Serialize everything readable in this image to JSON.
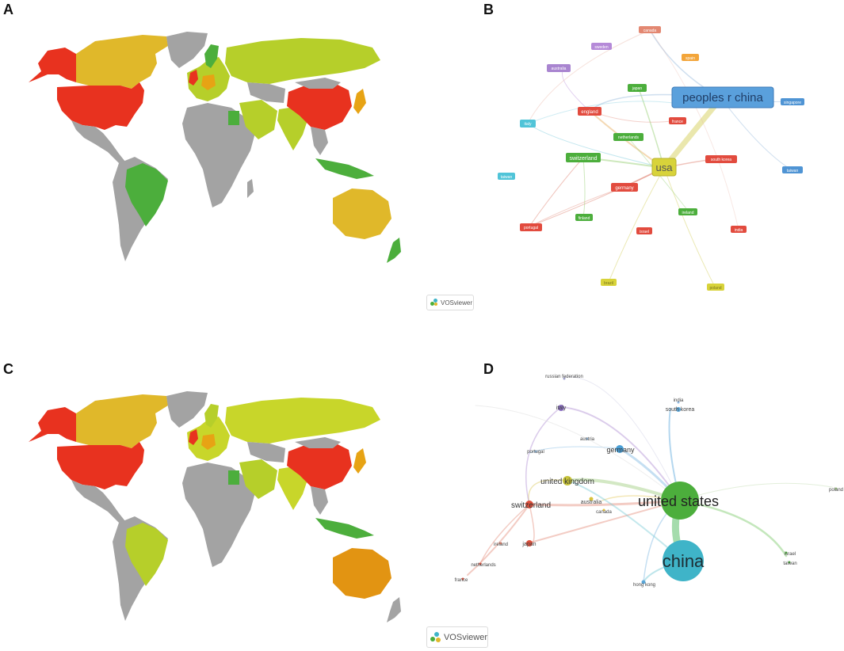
{
  "panels": {
    "a": "A",
    "b": "B",
    "c": "C",
    "d": "D"
  },
  "vosviewer": {
    "badge_text": "VOSviewer"
  },
  "colors": {
    "red": "#e8321f",
    "orange": "#e7a314",
    "yellow": "#e0b82a",
    "lime": "#b6cf2a",
    "green": "#4cae3c",
    "gray": "#a3a3a3",
    "blue": "#4f94d4",
    "teal": "#3fb4c8",
    "purple": "#9a6fc0"
  },
  "network_b": {
    "nodes": [
      {
        "id": "peoples_r_china",
        "label": "peoples r china",
        "color": "#4f94d4"
      },
      {
        "id": "usa",
        "label": "usa",
        "color": "#d8d33a"
      },
      {
        "id": "canada",
        "label": "canada",
        "color": "#e38872"
      },
      {
        "id": "sweden",
        "label": "sweden",
        "color": "#b58ad8"
      },
      {
        "id": "spain",
        "label": "spain",
        "color": "#f3a53a"
      },
      {
        "id": "australia",
        "label": "australia",
        "color": "#a985d0"
      },
      {
        "id": "japan",
        "label": "japan",
        "color": "#4cae3c"
      },
      {
        "id": "singapore",
        "label": "singapore",
        "color": "#4f94d4"
      },
      {
        "id": "italy",
        "label": "italy",
        "color": "#50c4d8"
      },
      {
        "id": "england",
        "label": "england",
        "color": "#e24b3e"
      },
      {
        "id": "france",
        "label": "france",
        "color": "#e24b3e"
      },
      {
        "id": "netherlands",
        "label": "netherlands",
        "color": "#4cae3c"
      },
      {
        "id": "switzerland",
        "label": "switzerland",
        "color": "#4cae3c"
      },
      {
        "id": "south_korea",
        "label": "south korea",
        "color": "#e24b3e"
      },
      {
        "id": "taiwan",
        "label": "taiwan",
        "color": "#50c4d8"
      },
      {
        "id": "germany",
        "label": "germany",
        "color": "#e24b3e"
      },
      {
        "id": "taiwan_r",
        "label": "taiwan",
        "color": "#4f94d4"
      },
      {
        "id": "finland",
        "label": "finland",
        "color": "#4cae3c"
      },
      {
        "id": "ireland",
        "label": "ireland",
        "color": "#4cae3c"
      },
      {
        "id": "portugal",
        "label": "portugal",
        "color": "#e24b3e"
      },
      {
        "id": "israel",
        "label": "israel",
        "color": "#e24b3e"
      },
      {
        "id": "india",
        "label": "india",
        "color": "#e24b3e"
      },
      {
        "id": "brazil",
        "label": "brazil",
        "color": "#d8d33a"
      },
      {
        "id": "poland",
        "label": "poland",
        "color": "#d8d33a"
      }
    ]
  },
  "network_d": {
    "nodes": [
      {
        "id": "russian_federation",
        "label": "russian federation",
        "color": "#9ea0c8"
      },
      {
        "id": "india",
        "label": "india",
        "color": "#8fb7dd"
      },
      {
        "id": "south_korea",
        "label": "south korea",
        "color": "#5aa6d8"
      },
      {
        "id": "italy",
        "label": "italy",
        "color": "#8a6fc0"
      },
      {
        "id": "austria",
        "label": "austria",
        "color": "#8fb7dd"
      },
      {
        "id": "portugal",
        "label": "portugal",
        "color": "#8fb7dd"
      },
      {
        "id": "germany",
        "label": "germany",
        "color": "#4a9fd6"
      },
      {
        "id": "united_kingdom",
        "label": "united kingdom",
        "color": "#c7c33a"
      },
      {
        "id": "poland",
        "label": "poland",
        "color": "#a7cf8f"
      },
      {
        "id": "united_states",
        "label": "united states",
        "color": "#4cae3c"
      },
      {
        "id": "switzerland",
        "label": "switzerland",
        "color": "#e0503c"
      },
      {
        "id": "australia",
        "label": "australia",
        "color": "#d8c23a"
      },
      {
        "id": "canada",
        "label": "canada",
        "color": "#e6c13a"
      },
      {
        "id": "ireland",
        "label": "ireland",
        "color": "#e38872"
      },
      {
        "id": "japan",
        "label": "japan",
        "color": "#e0503c"
      },
      {
        "id": "israel",
        "label": "israel",
        "color": "#4cae3c"
      },
      {
        "id": "taiwan",
        "label": "taiwan",
        "color": "#4cae3c"
      },
      {
        "id": "china",
        "label": "china",
        "color": "#3fb4c8"
      },
      {
        "id": "netherlands",
        "label": "netherlands",
        "color": "#e0503c"
      },
      {
        "id": "hong_kong",
        "label": "hong kong",
        "color": "#5aa6d8"
      },
      {
        "id": "france",
        "label": "france",
        "color": "#e0503c"
      }
    ]
  }
}
